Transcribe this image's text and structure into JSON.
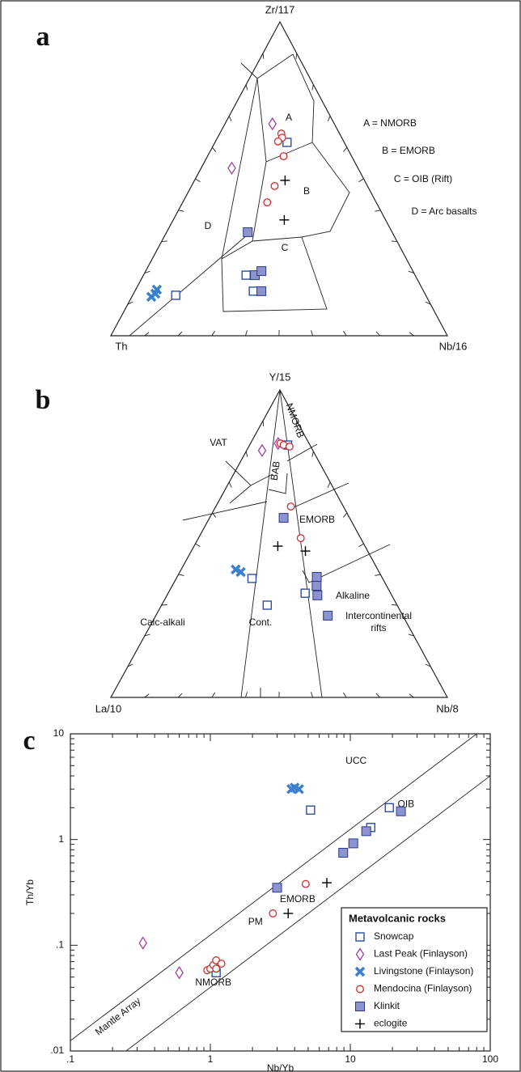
{
  "chart_data": [
    {
      "type": "ternary",
      "panel_label": "a",
      "apex_labels": {
        "top": "Zr/117",
        "left": "Th",
        "right": "Nb/16"
      },
      "field_labels": [
        "A",
        "B",
        "C",
        "D"
      ],
      "annotations": [
        "A = NMORB",
        "B = EMORB",
        "C = OIB (Rift)",
        "D = Arc basalts"
      ],
      "series": [
        {
          "marker": "open-square",
          "color": "#2e4e9e",
          "values": [
            [
              0.616,
              0.17,
              0.214
            ],
            [
              0.129,
              0.743,
              0.128
            ],
            [
              0.193,
              0.502,
              0.305
            ],
            [
              0.142,
              0.506,
              0.352
            ]
          ]
        },
        {
          "marker": "diamond",
          "color": "#a040a8",
          "values": [
            [
              0.675,
              0.184,
              0.141
            ],
            [
              0.534,
              0.375,
              0.091
            ]
          ]
        },
        {
          "marker": "x",
          "color": "#3b7fcf",
          "values": [
            [
              0.134,
              0.801,
              0.065
            ],
            [
              0.124,
              0.818,
              0.058
            ],
            [
              0.147,
              0.79,
              0.063
            ]
          ]
        },
        {
          "marker": "circle",
          "color": "#d42a2a",
          "values": [
            [
              0.644,
              0.173,
              0.183
            ],
            [
              0.631,
              0.177,
              0.192
            ],
            [
              0.619,
              0.195,
              0.186
            ],
            [
              0.572,
              0.202,
              0.226
            ],
            [
              0.477,
              0.276,
              0.247
            ],
            [
              0.425,
              0.324,
              0.251
            ]
          ]
        },
        {
          "marker": "filled-square",
          "color": "#8c93cf",
          "values": [
            [
              0.33,
              0.429,
              0.241
            ],
            [
              0.193,
              0.476,
              0.331
            ],
            [
              0.206,
              0.45,
              0.344
            ],
            [
              0.142,
              0.482,
              0.376
            ]
          ]
        },
        {
          "marker": "plus",
          "color": "#000000",
          "values": [
            [
              0.495,
              0.236,
              0.269
            ],
            [
              0.369,
              0.301,
              0.33
            ]
          ]
        }
      ]
    },
    {
      "type": "ternary",
      "panel_label": "b",
      "apex_labels": {
        "top": "Y/15",
        "left": "La/10",
        "right": "Nb/8"
      },
      "field_labels": [
        "VAT",
        "NMORB",
        "BAB",
        "EMORB",
        "Calc-alkali",
        "Cont.",
        "Alkaline",
        [
          "Intercontinental",
          "rifts"
        ]
      ],
      "series": [
        {
          "marker": "open-square",
          "color": "#2e4e9e",
          "values": [
            [
              0.821,
              0.066,
              0.113
            ],
            [
              0.387,
              0.388,
              0.225
            ],
            [
              0.3,
              0.386,
              0.314
            ],
            [
              0.339,
              0.254,
              0.407
            ]
          ]
        },
        {
          "marker": "diamond",
          "color": "#a040a8",
          "values": [
            [
              0.803,
              0.151,
              0.046
            ],
            [
              0.826,
              0.092,
              0.082
            ]
          ]
        },
        {
          "marker": "x",
          "color": "#3b7fcf",
          "values": [
            [
              0.416,
              0.422,
              0.162
            ],
            [
              0.408,
              0.411,
              0.181
            ]
          ]
        },
        {
          "marker": "circle",
          "color": "#d42a2a",
          "values": [
            [
              0.826,
              0.085,
              0.089
            ],
            [
              0.821,
              0.078,
              0.101
            ],
            [
              0.816,
              0.063,
              0.121
            ],
            [
              0.621,
              0.156,
              0.223
            ],
            [
              0.518,
              0.178,
              0.304
            ]
          ]
        },
        {
          "marker": "filled-square",
          "color": "#8c93cf",
          "values": [
            [
              0.584,
              0.196,
              0.22
            ],
            [
              0.392,
              0.193,
              0.415
            ],
            [
              0.363,
              0.208,
              0.429
            ],
            [
              0.332,
              0.221,
              0.447
            ],
            [
              0.266,
              0.223,
              0.511
            ]
          ]
        },
        {
          "marker": "plus",
          "color": "#000000",
          "values": [
            [
              0.492,
              0.259,
              0.249
            ],
            [
              0.476,
              0.185,
              0.339
            ]
          ]
        }
      ]
    },
    {
      "type": "scatter",
      "panel_label": "c",
      "xlabel": "Nb/Yb",
      "ylabel": "Th/Yb",
      "xscale": "log",
      "yscale": "log",
      "xlim": [
        0.1,
        100
      ],
      "ylim": [
        0.01,
        10
      ],
      "xticks": [
        {
          "value": 0.1,
          "label": ".1"
        },
        1,
        10,
        100
      ],
      "yticks": [
        {
          "value": 0.01,
          "label": ".01"
        },
        {
          "value": 0.1,
          "label": ".1"
        },
        1,
        10
      ],
      "annotations": [
        "UCC",
        "OIB",
        "EMORB",
        "PM",
        "NMORB",
        "Mantle Array"
      ],
      "legend": {
        "title": "Metavolcanic rocks",
        "position": "lower right"
      },
      "series": [
        {
          "name": "Snowcap",
          "marker": "open-square",
          "color": "#2e4e9e",
          "x": [
            5.2,
            14,
            19,
            1.1
          ],
          "y": [
            1.9,
            1.3,
            2.0,
            0.055
          ]
        },
        {
          "name": "Last Peak (Finlayson)",
          "marker": "diamond",
          "color": "#a040a8",
          "x": [
            0.33,
            0.6
          ],
          "y": [
            0.105,
            0.055
          ]
        },
        {
          "name": "Livingstone (Finlayson)",
          "marker": "x",
          "color": "#3b7fcf",
          "x": [
            3.8,
            4.0,
            4.3
          ],
          "y": [
            3.0,
            3.1,
            3.0
          ]
        },
        {
          "name": "Mendocina (Finlayson)",
          "marker": "circle",
          "color": "#d42a2a",
          "x": [
            0.95,
            1.0,
            1.05,
            1.1,
            1.2,
            1.1,
            2.8,
            4.8
          ],
          "y": [
            0.058,
            0.06,
            0.065,
            0.072,
            0.067,
            0.06,
            0.2,
            0.38
          ]
        },
        {
          "name": "Klinkit",
          "marker": "filled-square",
          "color": "#8c93cf",
          "x": [
            3.0,
            8.9,
            10.5,
            13,
            23
          ],
          "y": [
            0.35,
            0.75,
            0.92,
            1.2,
            1.85
          ]
        },
        {
          "name": "eclogite",
          "marker": "plus",
          "color": "#000000",
          "x": [
            3.6,
            6.8
          ],
          "y": [
            0.2,
            0.39
          ]
        }
      ]
    }
  ]
}
